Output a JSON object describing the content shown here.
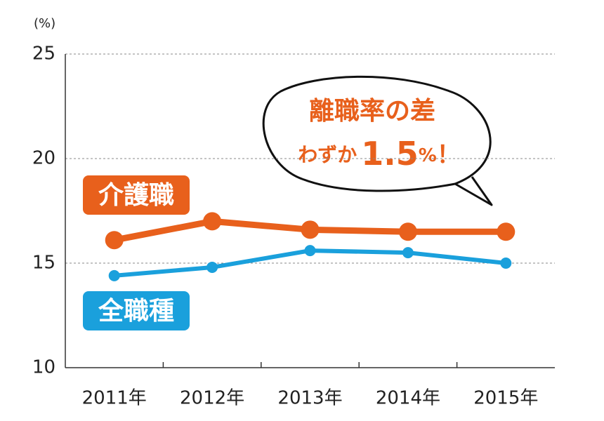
{
  "chart_data": {
    "type": "line",
    "unit_label": "(%)",
    "categories": [
      "2011年",
      "2012年",
      "2013年",
      "2014年",
      "2015年"
    ],
    "series": [
      {
        "name": "介護職",
        "color": "#e8601c",
        "values": [
          16.1,
          17.0,
          16.6,
          16.5,
          16.5
        ]
      },
      {
        "name": "全職種",
        "color": "#1aa0dc",
        "values": [
          14.4,
          14.8,
          15.6,
          15.5,
          15.0
        ]
      }
    ],
    "ylim": [
      10,
      25
    ],
    "yticks": [
      10,
      15,
      20,
      25
    ],
    "grid": true,
    "annotation": [
      "離職率の差",
      "わずか",
      "1.5",
      "%",
      "！"
    ]
  }
}
